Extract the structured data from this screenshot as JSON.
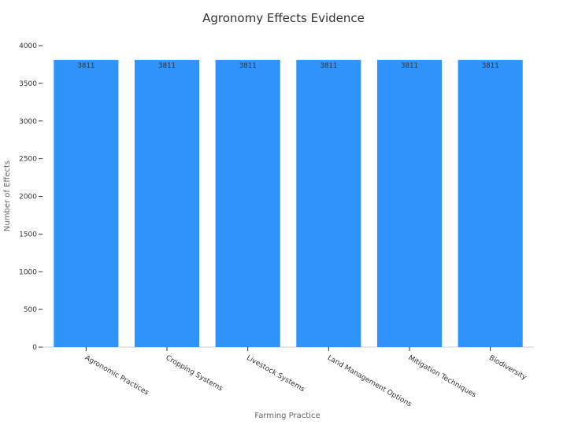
{
  "chart_data": {
    "type": "bar",
    "title": "Agronomy Effects Evidence",
    "xlabel": "Farming Practice",
    "ylabel": "Number of Effects",
    "categories": [
      "Agronomic Practices",
      "Cropping Systems",
      "Livestock Systems",
      "Land Management Options",
      "Mitigation Techniques",
      "Biodiversity"
    ],
    "values": [
      3811,
      3811,
      3811,
      3811,
      3811,
      3811
    ],
    "data_labels": [
      "3811",
      "3811",
      "3811",
      "3811",
      "3811",
      "3811"
    ],
    "ylim": [
      0,
      4000
    ],
    "yticks": [
      0,
      500,
      1000,
      1500,
      2000,
      2500,
      3000,
      3500,
      4000
    ],
    "bar_color": "#2E93FA",
    "grid": false,
    "legend": "none"
  }
}
